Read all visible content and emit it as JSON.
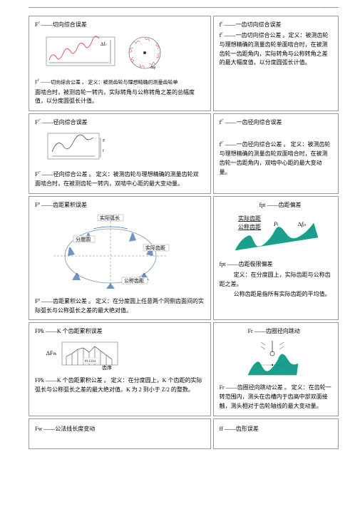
{
  "row1": {
    "left": {
      "title": "F<span class=\"sup\">i'</span> ——切向综合误差",
      "cap": "F<span class=\"sup\">i'</span> ——切向综合公差 。 定义：被测齿轮与理想精确的测量齿轮单",
      "def": "面啮合时，被测齿轮一转内，实际转角与公称转角之差的总幅度值，以分度圆弧长计值。"
    },
    "right": {
      "t1": "f<span class=\"sup\">i'</span> ——一齿切向综合误差",
      "t2": "f<span class=\"sup\">i'</span> ——一齿切向综合公差 。定义：被测齿轮与理想精确的测量齿轮单面啮合时，在被测齿轮一齿距角内，实际转角与公称转角之差的最大幅度值，以分度圆弧长计值。"
    }
  },
  "row2": {
    "left": {
      "title": "F<span class=\"sup\">i''</span> ——径向综合误差",
      "def": "F<span class=\"sup\">i''</span> ——径向综合公差 。 定义：被测齿轮与理想精确的测量齿轮双面啮合时，在被测齿轮一转内，双啮中心距的最大变动量。"
    },
    "right": {
      "t1": "f<span class=\"sup\">i''</span> ——一齿径向综合误差",
      "t2": "f<span class=\"sup\">i''</span> ——一齿径向综合公差 。 定义：被测齿轮与理想精确的测量齿轮双面啮合时，在被测齿轮一齿距角内，双啮中心距的最大变动量。"
    }
  },
  "row3": {
    "left": {
      "title": "F<span class=\"sup\">p</span> ——齿距累积误差",
      "labels": {
        "l1": "实际弧长",
        "l2": "分度圆",
        "l3": "实际齿距",
        "l4": "公称齿距"
      },
      "def": "F<span class=\"sup\">p</span> ——齿距累积公差 。 定义：在分度圆上任意两个同侧齿面间的实际弧长与公称弧长之差的最大绝对值。"
    },
    "right": {
      "t1": "f<span class=\"sub\">pt</sub> ——齿距偏差",
      "lbl1": "实际齿距",
      "lbl2": "公称齿距",
      "t2": "f<span class=\"sub\">pt</sub> ——齿距极限偏差",
      "def": "定义：在分度圆上，实际齿距与公称齿距之差。",
      "def2": "公称齿距是指所有实际齿距的平均值。"
    }
  },
  "row4": {
    "left": {
      "title": "F<span class=\"sub\">Pk</sub> ——K 个齿距累积误差",
      "lbl": "齿序",
      "def": "F<span class=\"sub\">Pk</sub> ——K 个齿距累积公差 。 定义：在分度圆上，K 个齿距的实际弧长与公称弧长之差的最大绝对值。K 为 2 到小于 Z/2 的整数。"
    },
    "right": {
      "title": "F<span class=\"sub\">r</sub> ——齿圈径向跳动",
      "def": "F<span class=\"sub\">r</sub> ——齿圈径向跳动公差 。 定义：在齿轮一转范围内，测头在齿槽内于齿高中部双面接触，测头相对于齿轮轴线的最大变动量。"
    }
  },
  "row5": {
    "left": "F<span class=\"sub\">w</sub> ——公法线长度变动",
    "right": "f<span class=\"sub\">f</sub> ——齿形误差"
  }
}
